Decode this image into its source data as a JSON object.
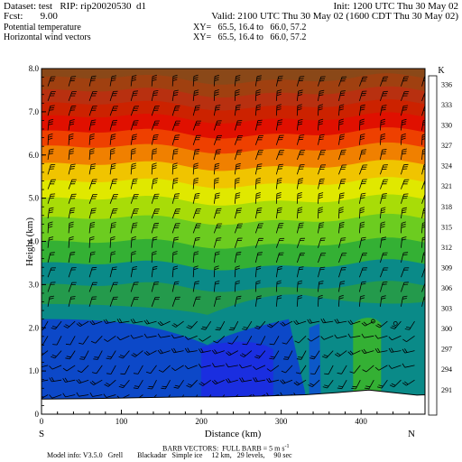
{
  "header": {
    "dataset": "Dataset: test   RIP: rip20020530  d1",
    "init": "Init: 1200 UTC Thu 30 May 02",
    "fcst": "Fcst:       9.00",
    "valid": "Valid: 2100 UTC Thu 30 May 02 (1600 CDT Thu 30 May 02)",
    "field1": "Potential temperature",
    "xy1": "XY=   65.5, 16.4 to   66.0, 57.2",
    "field2": "Horizontal wind vectors",
    "xy2": "XY=   65.5, 16.4 to   66.0, 57.2"
  },
  "chart_data": {
    "type": "heatmap",
    "title": "Potential temperature",
    "xlabel": "Distance (km)",
    "ylabel": "Height (km)",
    "xlim": [
      0,
      480
    ],
    "ylim": [
      0,
      8.0
    ],
    "x_ticks": [
      "0",
      "100",
      "200",
      "300",
      "400"
    ],
    "y_ticks": [
      "0",
      "1.0",
      "2.0",
      "3.0",
      "4.0",
      "5.0",
      "6.0",
      "7.0",
      "8.0"
    ],
    "x_end_labels": {
      "left": "S",
      "right": "N"
    },
    "colorbar": {
      "unit": "K",
      "labels": [
        "291",
        "294",
        "297",
        "300",
        "303",
        "306",
        "309",
        "312",
        "315",
        "318",
        "321",
        "324",
        "327",
        "330",
        "333",
        "336"
      ],
      "colors": [
        "#9999ee",
        "#8c8ce8",
        "#7e7ee0",
        "#6a6ad8",
        "#4f4fd0",
        "#2a3ad0",
        "#0c58c8",
        "#0a8a88",
        "#34b034",
        "#6ccc20",
        "#a8dc08",
        "#e0e800",
        "#f0c400",
        "#f08000",
        "#ee4000",
        "#e01000",
        "#cc2200",
        "#b83010",
        "#a04010",
        "#8a4818"
      ]
    },
    "theta_levels": [
      {
        "height_km": 0.35,
        "theta_K": 306
      },
      {
        "height_km": 2.2,
        "theta_K": 307
      },
      {
        "height_km": 3.0,
        "theta_K": 309
      },
      {
        "height_km": 3.75,
        "theta_K": 312
      },
      {
        "height_km": 4.5,
        "theta_K": 315
      },
      {
        "height_km": 5.3,
        "theta_K": 318
      },
      {
        "height_km": 6.0,
        "theta_K": 321
      },
      {
        "height_km": 6.7,
        "theta_K": 324
      },
      {
        "height_km": 7.3,
        "theta_K": 327
      },
      {
        "height_km": 8.0,
        "theta_K": 333
      }
    ]
  },
  "footer": {
    "barb_legend": "BARB VECTORS:  FULL BARB = 5 m s",
    "barb_exp": "-1",
    "model_info": "Model info: V3.5.0   Grell        Blackadar   Simple ice     12 km,   29 levels,     90 sec"
  }
}
